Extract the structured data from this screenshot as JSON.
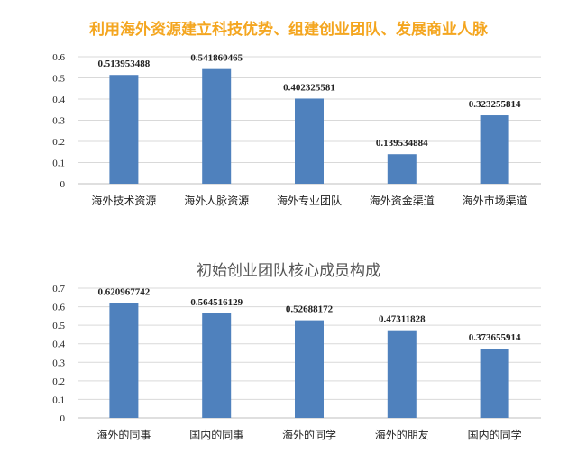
{
  "chart_data": [
    {
      "type": "bar",
      "title": "利用海外资源建立科技优势、组建创业团队、发展商业人脉",
      "categories": [
        "海外技术资源",
        "海外人脉资源",
        "海外专业团队",
        "海外资金渠道",
        "海外市场渠道"
      ],
      "values": [
        0.513953488,
        0.541860465,
        0.402325581,
        0.139534884,
        0.323255814
      ],
      "data_labels": [
        "0.513953488",
        "0.541860465",
        "0.402325581",
        "0.139534884",
        "0.323255814"
      ],
      "yticks": [
        "0",
        "0.1",
        "0.2",
        "0.3",
        "0.4",
        "0.5",
        "0.6"
      ],
      "ylim": [
        0,
        0.6
      ],
      "grid": true,
      "bar_color": "#4f81bd",
      "title_color": "#f4a620"
    },
    {
      "type": "bar",
      "title": "初始创业团队核心成员构成",
      "categories": [
        "海外的同事",
        "国内的同事",
        "海外的同学",
        "海外的朋友",
        "国内的同学"
      ],
      "values": [
        0.620967742,
        0.564516129,
        0.52688172,
        0.47311828,
        0.373655914
      ],
      "data_labels": [
        "0.620967742",
        "0.564516129",
        "0.52688172",
        "0.47311828",
        "0.373655914"
      ],
      "yticks": [
        "0",
        "0.1",
        "0.2",
        "0.3",
        "0.4",
        "0.5",
        "0.6",
        "0.7"
      ],
      "ylim": [
        0,
        0.7
      ],
      "grid": true,
      "bar_color": "#4f81bd",
      "title_color": "#555555"
    }
  ]
}
